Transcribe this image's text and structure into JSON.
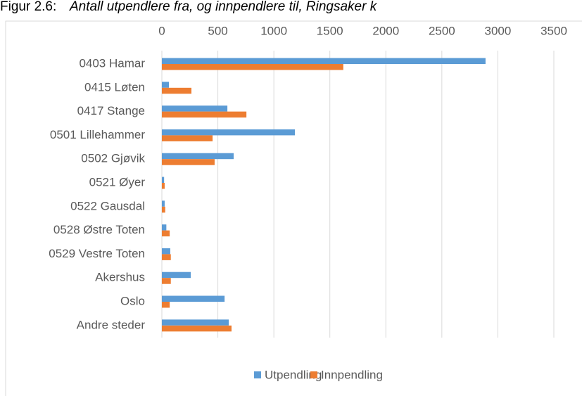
{
  "chart_data": {
    "type": "hbar",
    "title_prefix": "Figur 2.6:",
    "title": "Antall utpendlere fra, og innpendlere til, Ringsaker k",
    "categories": [
      "0403 Hamar",
      "0415 Løten",
      "0417 Stange",
      "0501 Lillehammer",
      "0502 Gjøvik",
      "0521 Øyer",
      "0522 Gausdal",
      "0528 Østre Toten",
      "0529 Vestre Toten",
      "Akershus",
      "Oslo",
      "Andre steder"
    ],
    "series": [
      {
        "name": "Utpendling",
        "color": "#5b9bd5",
        "values": [
          2890,
          63,
          585,
          1188,
          641,
          20,
          25,
          40,
          75,
          258,
          560,
          597
        ]
      },
      {
        "name": "Innpendling",
        "color": "#ed7d31",
        "values": [
          1620,
          264,
          755,
          453,
          471,
          25,
          30,
          70,
          80,
          80,
          70,
          622
        ]
      }
    ],
    "xlim": [
      0,
      3500
    ],
    "xticks": [
      0,
      500,
      1000,
      1500,
      2000,
      2500,
      3000,
      3500
    ],
    "grid": true,
    "legend": "bottom"
  }
}
